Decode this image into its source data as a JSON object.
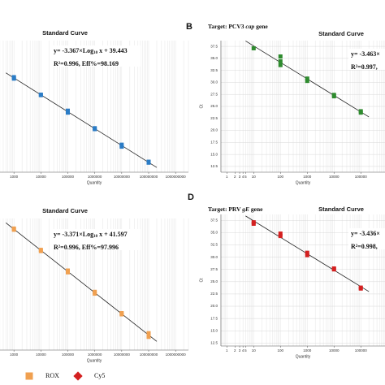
{
  "chart_data": [
    {
      "type": "scatter",
      "title": "Standard Curve",
      "equation": [
        "y= -3.367×Log",
        "10",
        " x + 39.443"
      ],
      "r2": "R²=0.996, Eff%=98.169",
      "x_label": "Quantity",
      "xscale": "log",
      "color": "#2b7cc6",
      "marker": "square",
      "x": [
        1000,
        1000,
        10000,
        10000,
        100000,
        100000,
        1000000,
        1000000,
        10000000,
        10000000,
        100000000,
        100000000
      ],
      "values": [
        29.5,
        29.2,
        26.0,
        25.9,
        22.8,
        22.4,
        19.3,
        19.1,
        16.0,
        15.6,
        12.6,
        12.4
      ],
      "xlim": [
        100,
        3000000000
      ],
      "ylim": [
        10.5,
        36.8
      ],
      "xticks": [
        1000,
        10000,
        100000,
        1000000,
        10000000,
        100000000,
        1000000000
      ],
      "grid": true
    },
    {
      "type": "scatter",
      "panel": "B",
      "target": [
        "Target: PCV3 ",
        "cap",
        " gene"
      ],
      "title": "Standard Curve",
      "equation": [
        "y= -3.463×"
      ],
      "r2": "R²=0.997,",
      "x_label": "Quantity",
      "y_label": "Ct",
      "xscale": "log",
      "color": "#2e8b2e",
      "marker": "square",
      "x": [
        10,
        100,
        100,
        100,
        1000,
        1000,
        10000,
        10000,
        100000,
        100000
      ],
      "values": [
        37.1,
        35.4,
        34.4,
        33.6,
        30.8,
        30.3,
        27.4,
        27.1,
        24.0,
        23.7
      ],
      "xlim": [
        0.6,
        800000
      ],
      "ylim": [
        11.3,
        38.7
      ],
      "xticks": [
        1,
        2,
        3,
        4,
        5,
        10,
        100,
        1000,
        10000,
        100000
      ],
      "yticks": [
        37.5,
        {
          "value": 35,
          "label": "35.0"
        },
        32.5,
        {
          "value": 30,
          "label": "30.0"
        },
        27.5,
        {
          "value": 25,
          "label": "25.0"
        },
        22.5,
        {
          "value": 20,
          "label": "20.0"
        },
        17.5,
        {
          "value": 15,
          "label": "15.0"
        },
        12.5
      ],
      "grid": true
    },
    {
      "type": "scatter",
      "title": "Standard Curve",
      "equation": [
        "y= -3.371×Log",
        "10",
        " x + 41.597"
      ],
      "r2": "R²=0.996, Eff%=97.996",
      "x_label": "Quantity",
      "xscale": "log",
      "color": "#f0a050",
      "marker": "square",
      "x": [
        1000,
        1000,
        10000,
        10000,
        100000,
        100000,
        1000000,
        1000000,
        10000000,
        10000000,
        100000000,
        100000000
      ],
      "values": [
        31.6,
        31.4,
        28.2,
        28.0,
        24.9,
        24.6,
        21.5,
        21.2,
        18.1,
        17.9,
        14.9,
        14.3
      ],
      "xlim": [
        100,
        3000000000
      ],
      "ylim": [
        12.2,
        33.2
      ],
      "xticks": [
        1000,
        10000,
        100000,
        1000000,
        10000000,
        100000000,
        1000000000
      ],
      "grid": true
    },
    {
      "type": "scatter",
      "panel": "D",
      "target": [
        "Target: PRV ",
        "gE",
        " gene"
      ],
      "title": "Standard Curve",
      "equation": [
        "y= -3.436×"
      ],
      "r2": "R²=0.998,",
      "x_label": "Quantity",
      "y_label": "Ct",
      "xscale": "log",
      "color": "#d42020",
      "marker": "square",
      "x": [
        10,
        10,
        100,
        100,
        1000,
        1000,
        10000,
        10000,
        100000,
        100000
      ],
      "values": [
        37.1,
        36.8,
        34.8,
        34.3,
        30.9,
        30.4,
        27.7,
        27.5,
        23.8,
        23.6
      ],
      "xlim": [
        0.6,
        800000
      ],
      "ylim": [
        11.9,
        38.7
      ],
      "xticks": [
        1,
        2,
        3,
        4,
        5,
        10,
        100,
        1000,
        10000,
        100000
      ],
      "yticks": [
        37.5,
        {
          "value": 35,
          "label": "35.0"
        },
        32.5,
        {
          "value": 30,
          "label": "30.0"
        },
        27.5,
        {
          "value": 25,
          "label": "25.0"
        },
        22.5,
        {
          "value": 20,
          "label": "20.0"
        },
        17.5,
        {
          "value": 15,
          "label": "15.0"
        },
        12.5
      ],
      "grid": true
    }
  ],
  "legend": [
    {
      "name": "ROX",
      "color": "#f0a050",
      "shape": "square"
    },
    {
      "name": "Cy5",
      "color": "#d42020",
      "shape": "diamond"
    }
  ]
}
